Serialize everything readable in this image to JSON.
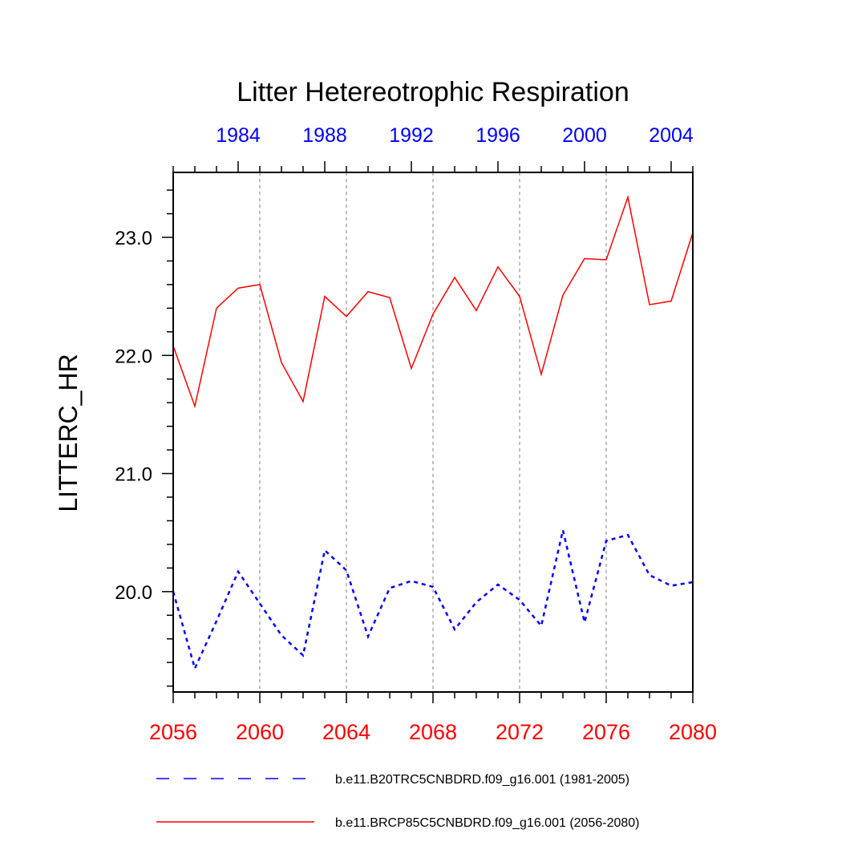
{
  "chart_data": {
    "type": "line",
    "title": "Litter Hetereotrophic Respiration",
    "ylabel": "LITTERC_HR",
    "ylim": [
      19.15,
      23.55
    ],
    "yticks": [
      20.0,
      21.0,
      22.0,
      23.0
    ],
    "ytick_labels": [
      "20.0",
      "21.0",
      "22.0",
      "23.0"
    ],
    "bottom_axis": {
      "range": [
        2056,
        2080
      ],
      "ticks": [
        2056,
        2060,
        2064,
        2068,
        2072,
        2076,
        2080
      ],
      "labels": [
        "2056",
        "2060",
        "2064",
        "2068",
        "2072",
        "2076",
        "2080"
      ],
      "color": "#ff0000"
    },
    "top_axis": {
      "range": [
        1981,
        2005
      ],
      "ticks": [
        1984,
        1988,
        1992,
        1996,
        2000,
        2004
      ],
      "labels": [
        "1984",
        "1988",
        "1992",
        "1996",
        "2000",
        "2004"
      ],
      "color": "#0000ff"
    },
    "grid": "vertical dashed at bottom-axis major ticks",
    "series": [
      {
        "name": "b.e11.B20TRC5CNBDRD.f09_g16.001 (1981-2005)",
        "color": "#0000ff",
        "style": "dashed",
        "x": [
          1981,
          1982,
          1983,
          1984,
          1985,
          1986,
          1987,
          1988,
          1989,
          1990,
          1991,
          1992,
          1993,
          1994,
          1995,
          1996,
          1997,
          1998,
          1999,
          2000,
          2001,
          2002,
          2003,
          2004,
          2005
        ],
        "values": [
          20.0,
          19.35,
          19.75,
          20.17,
          19.9,
          19.63,
          19.46,
          20.35,
          20.18,
          19.62,
          20.03,
          20.09,
          20.04,
          19.68,
          19.91,
          20.06,
          19.93,
          19.71,
          20.52,
          19.74,
          20.43,
          20.48,
          20.14,
          20.05,
          20.08
        ]
      },
      {
        "name": "b.e11.BRCP85C5CNBDRD.f09_g16.001 (2056-2080)",
        "color": "#ff0000",
        "style": "solid",
        "x": [
          2056,
          2057,
          2058,
          2059,
          2060,
          2061,
          2062,
          2063,
          2064,
          2065,
          2066,
          2067,
          2068,
          2069,
          2070,
          2071,
          2072,
          2073,
          2074,
          2075,
          2076,
          2077,
          2078,
          2079,
          2080
        ],
        "values": [
          22.08,
          21.57,
          22.4,
          22.57,
          22.6,
          21.94,
          21.61,
          22.5,
          22.33,
          22.54,
          22.49,
          21.89,
          22.35,
          22.66,
          22.38,
          22.75,
          22.5,
          21.84,
          22.51,
          22.82,
          22.81,
          23.34,
          22.43,
          22.46,
          23.04
        ]
      }
    ],
    "legend_position": "bottom"
  }
}
